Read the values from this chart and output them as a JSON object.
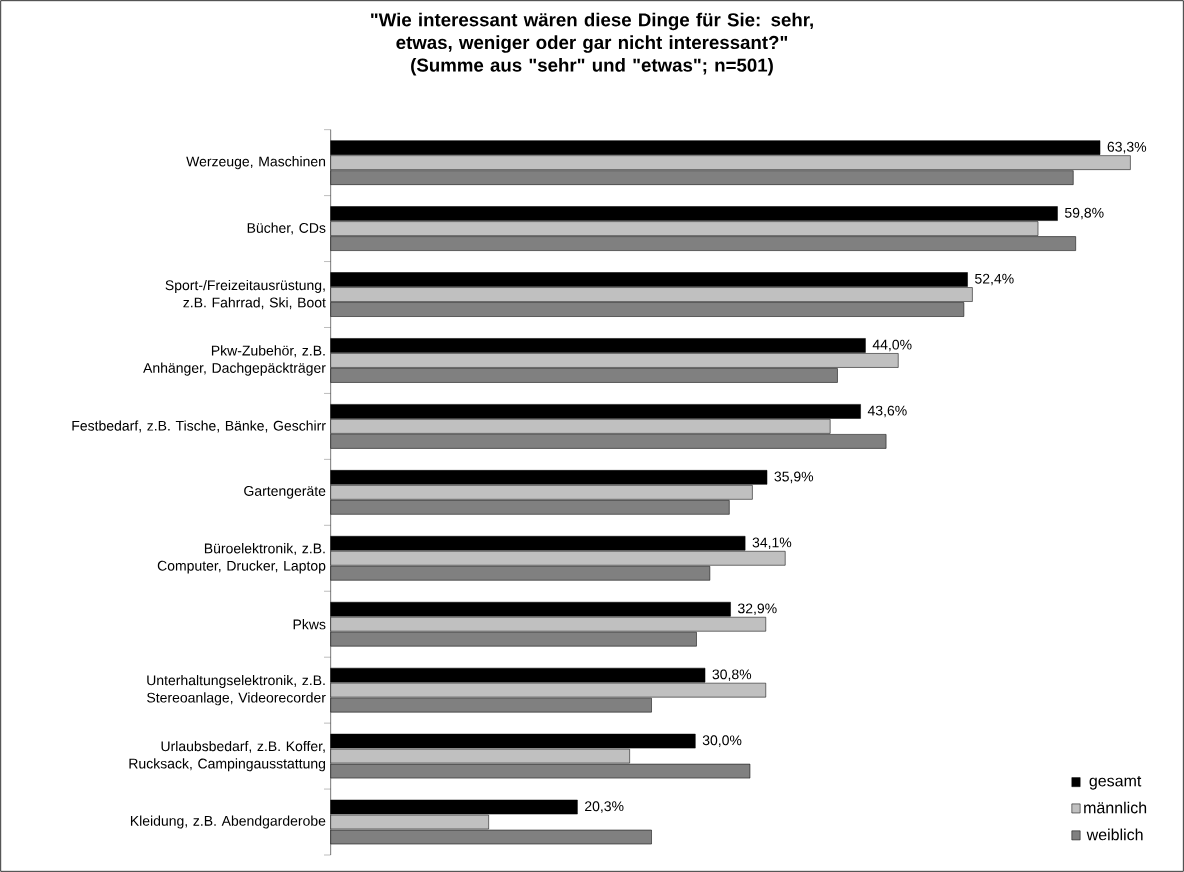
{
  "chart_data": {
    "type": "bar",
    "orientation": "horizontal",
    "title": "\"Wie interessant wären diese Dinge für Sie: sehr, etwas, weniger oder gar nicht interessant?\"",
    "subtitle": "(Summe aus \"sehr\" und \"etwas\"; n=501)",
    "categories": [
      "Werzeuge, Maschinen",
      "Bücher, CDs",
      "Sport-/Freizeitausrüstung, z.B. Fahrrad, Ski, Boot",
      "Pkw-Zubehör, z.B. Anhänger, Dachgepäckträger",
      "Festbedarf, z.B. Tische, Bänke, Geschirr",
      "Gartengeräte",
      "Büroelektronik, z.B. Computer, Drucker, Laptop",
      "Pkws",
      "Unterhaltungselektronik, z.B. Stereoanlage, Videorecorder",
      "Urlaubsbedarf, z.B. Koffer, Rucksack, Campingausstattung",
      "Kleidung, z.B. Abendgarderobe"
    ],
    "series": [
      {
        "name": "gesamt",
        "color": "#000000",
        "values": [
          63.3,
          59.8,
          52.4,
          44.0,
          43.6,
          35.9,
          34.1,
          32.9,
          30.8,
          30.0,
          20.3
        ],
        "value_labels": [
          "63,3%",
          "59,8%",
          "52,4%",
          "44,0%",
          "43,6%",
          "35,9%",
          "34,1%",
          "32,9%",
          "30,8%",
          "30,0%",
          "20,3%"
        ]
      },
      {
        "name": "männlich",
        "color": "#c0c0c0",
        "values": [
          65.8,
          58.2,
          52.8,
          46.7,
          41.1,
          34.7,
          37.4,
          35.8,
          35.8,
          24.6,
          13.0
        ]
      },
      {
        "name": "weiblich",
        "color": "#808080",
        "values": [
          61.1,
          61.3,
          52.1,
          41.7,
          45.7,
          32.8,
          31.2,
          30.1,
          26.4,
          34.5,
          26.4
        ]
      }
    ],
    "legend": "bottom right"
  }
}
